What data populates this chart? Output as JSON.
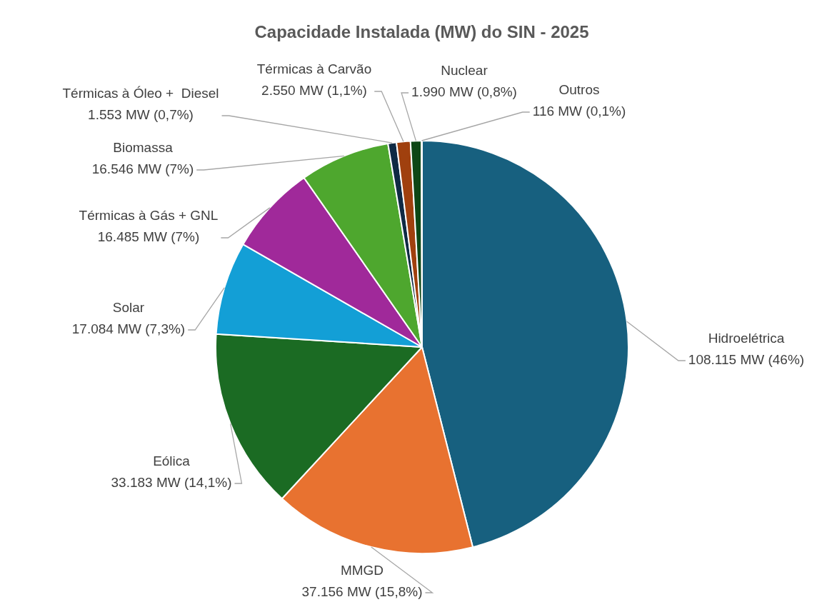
{
  "chart_data": {
    "type": "pie",
    "title": "Capacidade Instalada (MW) do SIN - 2025",
    "categories": [
      "Hidroelétrica",
      "MMGD",
      "Eólica",
      "Solar",
      "Térmicas à Gás + GNL",
      "Biomassa",
      "Térmicas à Óleo +  Diesel",
      "Térmicas à Carvão",
      "Nuclear",
      "Outros"
    ],
    "values": [
      108115,
      37156,
      33183,
      17084,
      16485,
      16546,
      1553,
      2550,
      1990,
      116
    ],
    "value_labels": [
      "108.115 MW (46%)",
      "37.156 MW (15,8%)",
      "33.183 MW (14,1%)",
      "17.084 MW (7,3%)",
      "16.485 MW (7%)",
      "16.546 MW (7%)",
      "1.553 MW (0,7%)",
      "2.550 MW (1,1%)",
      "1.990 MW (0,8%)",
      "116 MW (0,1%)"
    ],
    "colors": [
      "#17607f",
      "#e87230",
      "#1b6b23",
      "#139fd6",
      "#a0299a",
      "#4ea72e",
      "#0f2a44",
      "#a0400e",
      "#0d4716",
      "#2f6d8a"
    ],
    "legend": false
  }
}
